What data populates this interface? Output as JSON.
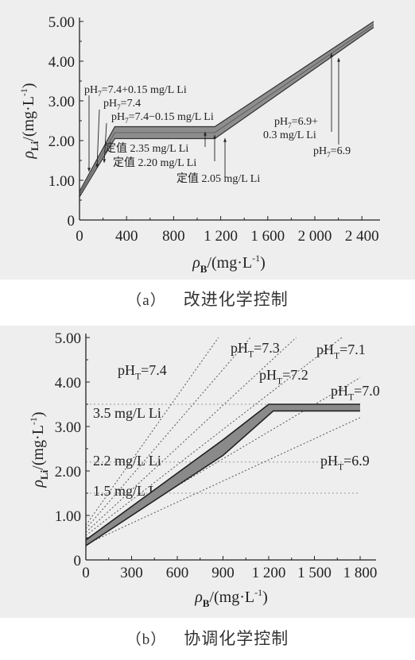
{
  "chart_data": [
    {
      "type": "line",
      "caption_tag": "（a）",
      "caption_text": "改进化学控制",
      "xlabel": "ρB/(mg·L-1)",
      "ylabel": "ρLi/(mg·L-1)",
      "xlim": [
        0,
        2500
      ],
      "ylim": [
        0,
        5.0
      ],
      "xticks": [
        0,
        400,
        800,
        1200,
        1600,
        2000,
        2400
      ],
      "xtick_labels": [
        "0",
        "400",
        "800",
        "1 200",
        "1 600",
        "2 000",
        "2 400"
      ],
      "yticks": [
        0,
        1.0,
        2.0,
        3.0,
        4.0,
        5.0
      ],
      "ytick_labels": [
        "0",
        "1.00",
        "2.00",
        "3.00",
        "4.00",
        "5.00"
      ],
      "grid": false,
      "series": [
        {
          "name": "pH7=7.4+0.15 mg/L Li",
          "x": [
            0,
            300,
            1150,
            2500
          ],
          "y": [
            0.72,
            2.35,
            2.35,
            5.0
          ]
        },
        {
          "name": "pH7=7.4",
          "x": [
            0,
            300,
            1150,
            2500
          ],
          "y": [
            0.65,
            2.2,
            2.2,
            4.92
          ]
        },
        {
          "name": "pH7=7.4−0.15 mg/L Li",
          "x": [
            0,
            300,
            1150,
            2500
          ],
          "y": [
            0.58,
            2.05,
            2.05,
            4.85
          ]
        }
      ],
      "annotations": [
        {
          "text": "pH7=7.4+0.15 mg/L Li",
          "sub": "7",
          "x": 75,
          "y": 1.2
        },
        {
          "text": "pH7=7.4",
          "sub": "7",
          "x": 120,
          "y": 1.45
        },
        {
          "text": "pH7=7.4−0.15 mg/L Li",
          "sub": "7",
          "x": 165,
          "y": 1.55
        },
        {
          "text": "定值 2.35 mg/L Li",
          "x": 1000,
          "y": 2.35
        },
        {
          "text": "定值 2.20 mg/L Li",
          "x": 1100,
          "y": 2.2
        },
        {
          "text": "定值 2.05 mg/L Li",
          "x": 1150,
          "y": 2.05
        },
        {
          "text": "pH7=6.9+",
          "text2": "0.3 mg/L Li",
          "sub": "7",
          "x": 2080,
          "y": 4.18
        },
        {
          "text": "pH7=6.9",
          "sub": "7",
          "x": 2150,
          "y": 4.05
        }
      ]
    },
    {
      "type": "line",
      "caption_tag": "（b）",
      "caption_text": "协调化学控制",
      "xlabel": "ρB/(mg·L-1)",
      "ylabel": "ρLi/(mg·L-1)",
      "xlim": [
        0,
        1850
      ],
      "ylim": [
        0,
        5.0
      ],
      "xticks": [
        0,
        300,
        600,
        900,
        1200,
        1500,
        1800
      ],
      "xtick_labels": [
        "0",
        "300",
        "600",
        "900",
        "1 200",
        "1 500",
        "1 800"
      ],
      "yticks": [
        0,
        1.0,
        2.0,
        3.0,
        4.0,
        5.0
      ],
      "ytick_labels": [
        "0",
        "1.00",
        "2.00",
        "3.00",
        "4.00",
        "5.00"
      ],
      "grid": false,
      "series": [
        {
          "name": "pHT=7.4",
          "x": [
            0,
            870
          ],
          "y": [
            0.78,
            5.0
          ]
        },
        {
          "name": "pHT=7.3",
          "x": [
            0,
            1080
          ],
          "y": [
            0.7,
            5.0
          ]
        },
        {
          "name": "pHT=7.2",
          "x": [
            0,
            1380
          ],
          "y": [
            0.62,
            5.0
          ]
        },
        {
          "name": "pHT=7.1",
          "x": [
            0,
            1680
          ],
          "y": [
            0.55,
            5.0
          ]
        },
        {
          "name": "pHT=7.0",
          "x": [
            0,
            1800
          ],
          "y": [
            0.45,
            4.1
          ]
        },
        {
          "name": "pHT=6.9",
          "x": [
            0,
            1800
          ],
          "y": [
            0.35,
            3.2
          ]
        },
        {
          "name": "band upper",
          "x": [
            0,
            900,
            1200,
            1800
          ],
          "y": [
            0.45,
            2.7,
            3.5,
            3.5
          ]
        },
        {
          "name": "band lower",
          "x": [
            0,
            900,
            1230,
            1800
          ],
          "y": [
            0.32,
            2.35,
            3.35,
            3.35
          ]
        }
      ],
      "hlines": [
        {
          "label": "3.5 mg/L Li",
          "y": 3.5
        },
        {
          "label": "2.2 mg/L Li",
          "y": 2.2
        },
        {
          "label": "1.5 mg/L Li",
          "y": 1.5
        }
      ],
      "curve_labels": [
        {
          "text": "pHT=7.4",
          "sub": "T"
        },
        {
          "text": "pHT=7.3",
          "sub": "T"
        },
        {
          "text": "pHT=7.2",
          "sub": "T"
        },
        {
          "text": "pHT=7.1",
          "sub": "T"
        },
        {
          "text": "pHT=7.0",
          "sub": "T"
        },
        {
          "text": "pHT=6.9",
          "sub": "T"
        }
      ]
    }
  ]
}
